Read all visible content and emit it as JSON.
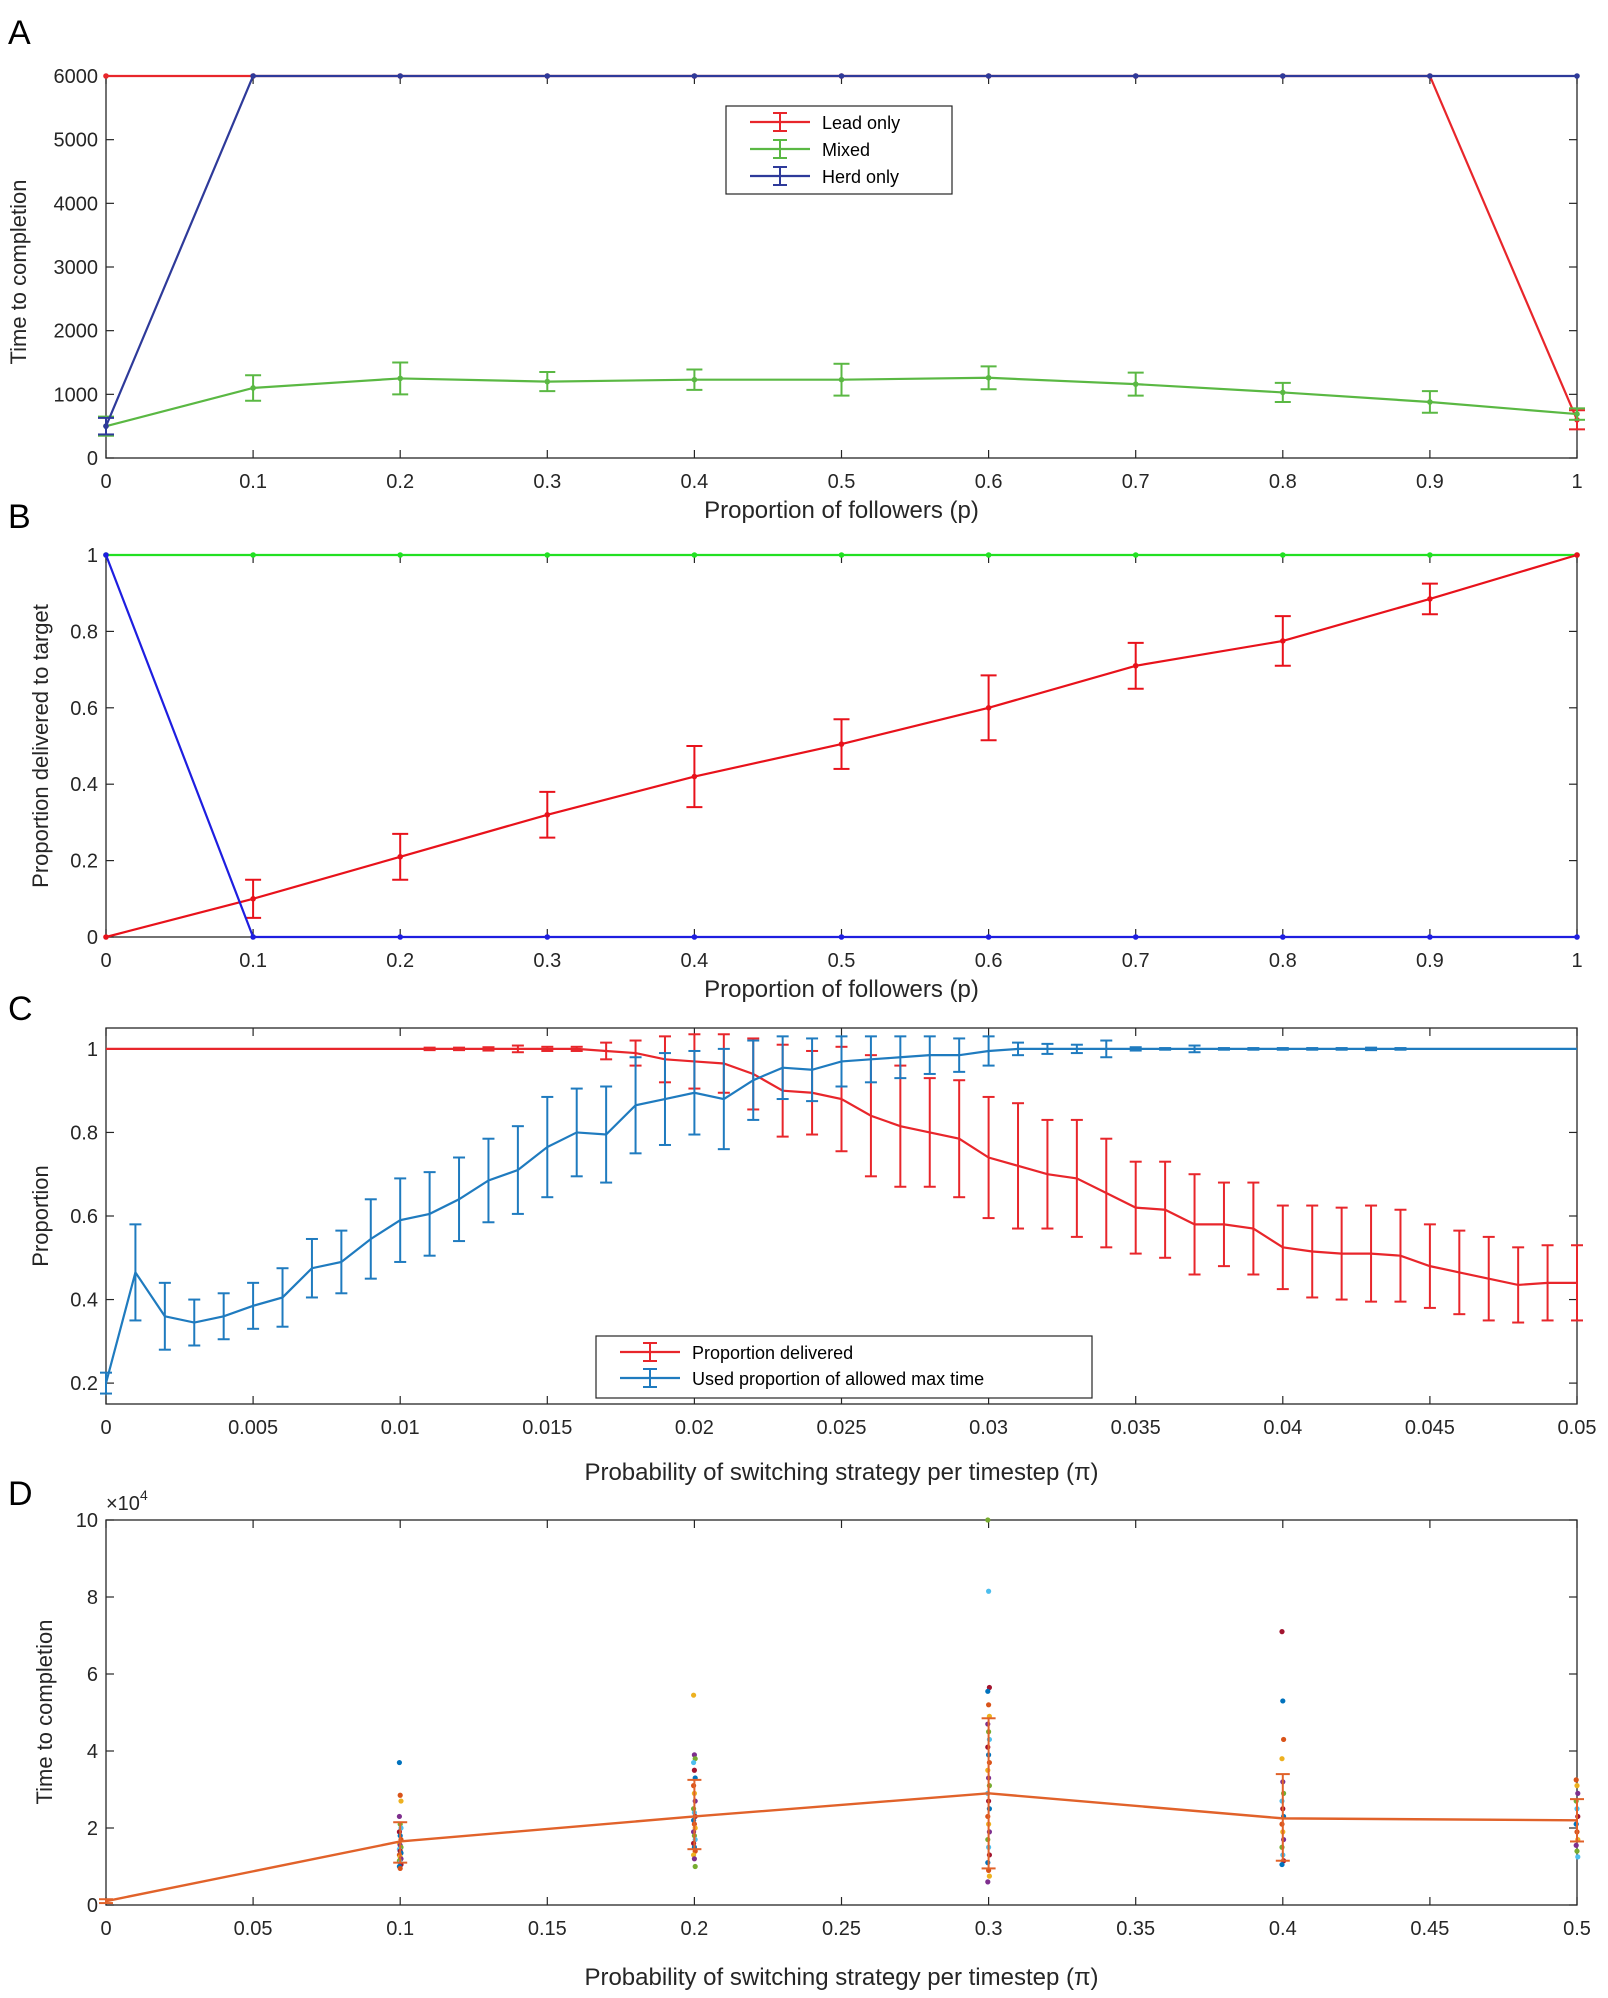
{
  "chart_data": [
    {
      "panel": "A",
      "type": "line",
      "xlabel": "Proportion of followers (p)",
      "ylabel": "Time to completion",
      "xlim": [
        0,
        1
      ],
      "ylim": [
        0,
        6000
      ],
      "xticks": [
        0,
        0.1,
        0.2,
        0.3,
        0.4,
        0.5,
        0.6,
        0.7,
        0.8,
        0.9,
        1
      ],
      "xticklabels": [
        "0",
        "0.1",
        "0.2",
        "0.3",
        "0.4",
        "0.5",
        "0.6",
        "0.7",
        "0.8",
        "0.9",
        "1"
      ],
      "yticks": [
        0,
        1000,
        2000,
        3000,
        4000,
        5000,
        6000
      ],
      "yticklabels": [
        "0",
        "1000",
        "2000",
        "3000",
        "4000",
        "5000",
        "6000"
      ],
      "legend_position": "top-center",
      "x": [
        0,
        0.1,
        0.2,
        0.3,
        0.4,
        0.5,
        0.6,
        0.7,
        0.8,
        0.9,
        1
      ],
      "series": [
        {
          "name": "Lead only",
          "color": "#e8262b",
          "values": [
            6000,
            6000,
            6000,
            6000,
            6000,
            6000,
            6000,
            6000,
            6000,
            6000,
            600
          ],
          "errors": [
            0,
            0,
            0,
            0,
            0,
            0,
            0,
            0,
            0,
            0,
            150
          ]
        },
        {
          "name": "Mixed",
          "color": "#5ab843",
          "values": [
            500,
            1100,
            1250,
            1200,
            1230,
            1230,
            1260,
            1160,
            1030,
            880,
            690
          ],
          "errors": [
            150,
            200,
            250,
            150,
            160,
            250,
            180,
            180,
            150,
            170,
            90
          ]
        },
        {
          "name": "Herd only",
          "color": "#2e3a9a",
          "values": [
            500,
            6000,
            6000,
            6000,
            6000,
            6000,
            6000,
            6000,
            6000,
            6000,
            6000
          ],
          "errors": [
            130,
            0,
            0,
            0,
            0,
            0,
            0,
            0,
            0,
            0,
            0
          ]
        }
      ]
    },
    {
      "panel": "B",
      "type": "line",
      "xlabel": "Proportion of followers (p)",
      "ylabel": "Proportion delivered to target",
      "xlim": [
        0,
        1
      ],
      "ylim": [
        0,
        1
      ],
      "xticks": [
        0,
        0.1,
        0.2,
        0.3,
        0.4,
        0.5,
        0.6,
        0.7,
        0.8,
        0.9,
        1
      ],
      "xticklabels": [
        "0",
        "0.1",
        "0.2",
        "0.3",
        "0.4",
        "0.5",
        "0.6",
        "0.7",
        "0.8",
        "0.9",
        "1"
      ],
      "yticks": [
        0,
        0.2,
        0.4,
        0.6,
        0.8,
        1
      ],
      "yticklabels": [
        "0",
        "0.2",
        "0.4",
        "0.6",
        "0.8",
        "1"
      ],
      "x": [
        0,
        0.1,
        0.2,
        0.3,
        0.4,
        0.5,
        0.6,
        0.7,
        0.8,
        0.9,
        1
      ],
      "series": [
        {
          "name": "Mixed",
          "color": "#22e022",
          "values": [
            1,
            1,
            1,
            1,
            1,
            1,
            1,
            1,
            1,
            1,
            1
          ],
          "errors": [
            0,
            0,
            0,
            0,
            0,
            0,
            0,
            0,
            0,
            0,
            0
          ]
        },
        {
          "name": "Lead only",
          "color": "#e8121b",
          "values": [
            0,
            0.1,
            0.21,
            0.32,
            0.42,
            0.505,
            0.6,
            0.71,
            0.775,
            0.885,
            1
          ],
          "errors": [
            0,
            0.05,
            0.06,
            0.06,
            0.08,
            0.065,
            0.085,
            0.06,
            0.065,
            0.04,
            0
          ]
        },
        {
          "name": "Herd only",
          "color": "#1e1ee0",
          "values": [
            1,
            0,
            0,
            0,
            0,
            0,
            0,
            0,
            0,
            0,
            0
          ],
          "errors": [
            0,
            0,
            0,
            0,
            0,
            0,
            0,
            0,
            0,
            0,
            0
          ]
        }
      ]
    },
    {
      "panel": "C",
      "type": "line",
      "xlabel": "Probability of switching strategy per timestep (π)",
      "ylabel": "Proportion",
      "xlim": [
        0,
        0.05
      ],
      "ylim": [
        0.15,
        1.05
      ],
      "xticks": [
        0,
        0.005,
        0.01,
        0.015,
        0.02,
        0.025,
        0.03,
        0.035,
        0.04,
        0.045,
        0.05
      ],
      "xticklabels": [
        "0",
        "0.005",
        "0.01",
        "0.015",
        "0.02",
        "0.025",
        "0.03",
        "0.035",
        "0.04",
        "0.045",
        "0.05"
      ],
      "yticks": [
        0.2,
        0.4,
        0.6,
        0.8,
        1
      ],
      "yticklabels": [
        "0.2",
        "0.4",
        "0.6",
        "0.8",
        "1"
      ],
      "legend_position": "bottom-center",
      "x": [
        0,
        0.001,
        0.002,
        0.003,
        0.004,
        0.005,
        0.006,
        0.007,
        0.008,
        0.009,
        0.01,
        0.011,
        0.012,
        0.013,
        0.014,
        0.015,
        0.016,
        0.017,
        0.018,
        0.019,
        0.02,
        0.021,
        0.022,
        0.023,
        0.024,
        0.025,
        0.026,
        0.027,
        0.028,
        0.029,
        0.03,
        0.031,
        0.032,
        0.033,
        0.034,
        0.035,
        0.036,
        0.037,
        0.038,
        0.039,
        0.04,
        0.041,
        0.042,
        0.043,
        0.044,
        0.045,
        0.046,
        0.047,
        0.048,
        0.049,
        0.05
      ],
      "series": [
        {
          "name": "Proportion delivered",
          "color": "#e8262b",
          "values": [
            1,
            1,
            1,
            1,
            1,
            1,
            1,
            1,
            1,
            1,
            1,
            1,
            1,
            1,
            1,
            1,
            1,
            0.995,
            0.99,
            0.975,
            0.97,
            0.965,
            0.94,
            0.9,
            0.895,
            0.88,
            0.84,
            0.815,
            0.8,
            0.785,
            0.74,
            0.72,
            0.7,
            0.69,
            0.655,
            0.62,
            0.615,
            0.58,
            0.58,
            0.57,
            0.525,
            0.515,
            0.51,
            0.51,
            0.505,
            0.48,
            0.465,
            0.45,
            0.435,
            0.44,
            0.44
          ],
          "errors": [
            0,
            0,
            0,
            0,
            0,
            0,
            0,
            0,
            0,
            0,
            0,
            0.003,
            0.003,
            0.004,
            0.008,
            0.005,
            0.005,
            0.02,
            0.03,
            0.055,
            0.065,
            0.07,
            0.085,
            0.11,
            0.1,
            0.125,
            0.145,
            0.145,
            0.13,
            0.14,
            0.145,
            0.15,
            0.13,
            0.14,
            0.13,
            0.11,
            0.115,
            0.12,
            0.1,
            0.11,
            0.1,
            0.11,
            0.11,
            0.115,
            0.11,
            0.1,
            0.1,
            0.1,
            0.09,
            0.09,
            0.09
          ]
        },
        {
          "name": "Used proportion of allowed max time",
          "color": "#1f7bbf",
          "values": [
            0.2,
            0.465,
            0.36,
            0.345,
            0.36,
            0.385,
            0.405,
            0.475,
            0.49,
            0.545,
            0.59,
            0.605,
            0.64,
            0.685,
            0.71,
            0.765,
            0.8,
            0.795,
            0.865,
            0.88,
            0.895,
            0.88,
            0.925,
            0.955,
            0.95,
            0.97,
            0.975,
            0.98,
            0.985,
            0.985,
            0.995,
            1,
            1,
            1,
            1,
            1,
            1,
            1,
            1,
            1,
            1,
            1,
            1,
            1,
            1,
            1,
            1,
            1,
            1,
            1,
            1
          ],
          "errors": [
            0.025,
            0.115,
            0.08,
            0.055,
            0.055,
            0.055,
            0.07,
            0.07,
            0.075,
            0.095,
            0.1,
            0.1,
            0.1,
            0.1,
            0.105,
            0.12,
            0.105,
            0.115,
            0.115,
            0.11,
            0.1,
            0.12,
            0.095,
            0.075,
            0.075,
            0.06,
            0.055,
            0.05,
            0.045,
            0.04,
            0.035,
            0.015,
            0.012,
            0.01,
            0.02,
            0.004,
            0.002,
            0.008,
            0.002,
            0.002,
            0.002,
            0.002,
            0.002,
            0.003,
            0.002,
            0,
            0,
            0,
            0,
            0,
            0
          ]
        }
      ]
    },
    {
      "panel": "D",
      "type": "scatter",
      "xlabel": "Probability of switching strategy per timestep (π)",
      "ylabel": "Time to completion",
      "scale_label": "×10",
      "scale_exponent": "4",
      "xlim": [
        0,
        0.5
      ],
      "ylim": [
        0,
        10
      ],
      "y_multiplier": 10000,
      "xticks": [
        0,
        0.05,
        0.1,
        0.15,
        0.2,
        0.25,
        0.3,
        0.35,
        0.4,
        0.45,
        0.5
      ],
      "xticklabels": [
        "0",
        "0.05",
        "0.1",
        "0.15",
        "0.2",
        "0.25",
        "0.3",
        "0.35",
        "0.4",
        "0.45",
        "0.5"
      ],
      "yticks": [
        0,
        2,
        4,
        6,
        8,
        10
      ],
      "yticklabels": [
        "0",
        "2",
        "4",
        "6",
        "8",
        "10"
      ],
      "mean_line": {
        "color": "#e1622a",
        "x": [
          0,
          0.1,
          0.2,
          0.3,
          0.4,
          0.5
        ],
        "values": [
          0.1,
          1.65,
          2.3,
          2.9,
          2.25,
          2.2
        ],
        "err_low": [
          0.05,
          1.1,
          1.45,
          0.95,
          1.15,
          1.65
        ],
        "err_high": [
          0.15,
          2.15,
          3.25,
          4.85,
          3.4,
          2.75
        ]
      },
      "points": [
        {
          "x": 0.1,
          "values": [
            3.7,
            2.85,
            2.7,
            2.3,
            2.1,
            2.0,
            1.9,
            1.8,
            1.7,
            1.6,
            1.55,
            1.5,
            1.45,
            1.4,
            1.35,
            1.3,
            1.25,
            1.2,
            1.15,
            1.1,
            1.05,
            1.0,
            0.95
          ]
        },
        {
          "x": 0.2,
          "values": [
            5.45,
            3.9,
            3.8,
            3.7,
            3.5,
            3.3,
            3.1,
            2.9,
            2.7,
            2.5,
            2.4,
            2.3,
            2.2,
            2.1,
            2.0,
            1.9,
            1.8,
            1.7,
            1.6,
            1.5,
            1.4,
            1.3,
            1.2,
            1.0
          ]
        },
        {
          "x": 0.3,
          "values": [
            10.0,
            8.15,
            5.65,
            5.55,
            5.2,
            4.9,
            4.7,
            4.5,
            4.3,
            4.1,
            3.9,
            3.7,
            3.5,
            3.3,
            3.1,
            2.9,
            2.7,
            2.5,
            2.3,
            2.1,
            1.9,
            1.7,
            1.5,
            1.3,
            1.1,
            0.9,
            0.75,
            0.6
          ]
        },
        {
          "x": 0.4,
          "values": [
            7.1,
            5.3,
            4.3,
            3.8,
            3.2,
            2.9,
            2.7,
            2.5,
            2.3,
            2.1,
            1.9,
            1.7,
            1.5,
            1.3,
            1.15,
            1.05
          ]
        },
        {
          "x": 0.5,
          "values": [
            3.25,
            3.1,
            2.9,
            2.7,
            2.5,
            2.3,
            2.1,
            1.9,
            1.7,
            1.55,
            1.4,
            1.25
          ]
        }
      ]
    }
  ],
  "panel_letters": [
    "A",
    "B",
    "C",
    "D"
  ],
  "palette": [
    "#0072bd",
    "#d95319",
    "#edb120",
    "#7e2f8e",
    "#77ac30",
    "#4dbeee",
    "#a2142f"
  ]
}
